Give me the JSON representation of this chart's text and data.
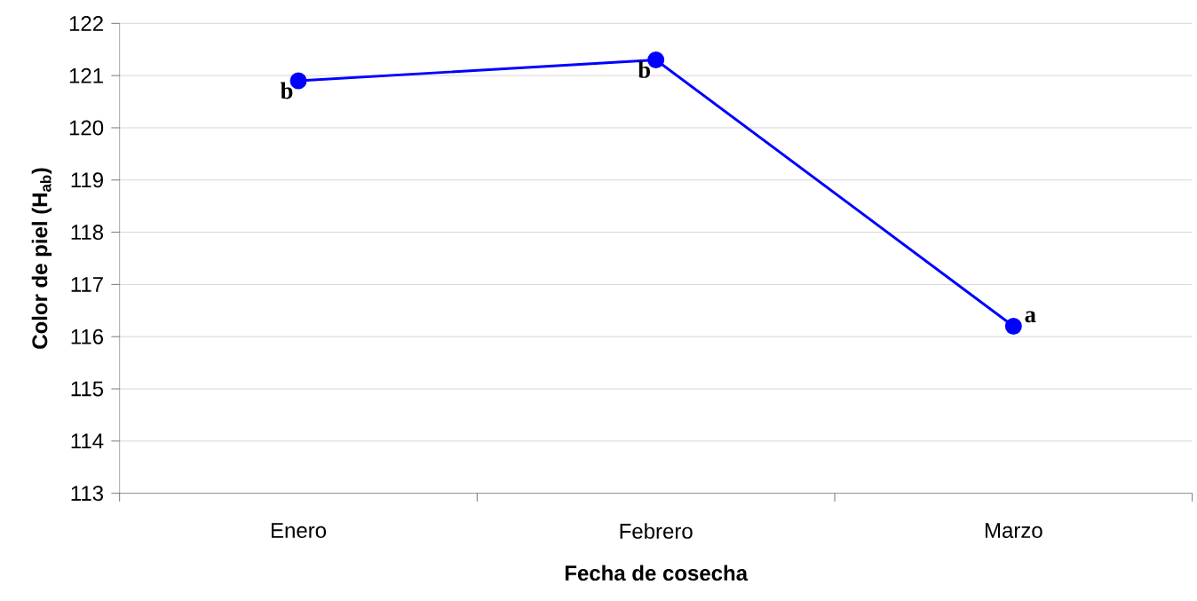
{
  "chart_data": {
    "type": "line",
    "xlabel": "Fecha de cosecha",
    "ylabel": "Color de piel (H$_{ab}$)",
    "categories": [
      "Enero",
      "Febrero",
      "Marzo"
    ],
    "series": [
      {
        "color": "#0000ff",
        "values": [
          120.9,
          121.3,
          116.2
        ]
      }
    ],
    "ylim": [
      113,
      122
    ],
    "yticks": [
      113,
      114,
      115,
      116,
      117,
      118,
      119,
      120,
      121,
      122
    ],
    "grid": "y",
    "marker": "circle",
    "line_style": "solid",
    "annotations": [
      {
        "text": "b",
        "x": "Enero",
        "y": 120.9
      },
      {
        "text": "b",
        "x": "Febrero",
        "y": 121.3
      },
      {
        "text": "a",
        "x": "Marzo",
        "y": 116.2
      }
    ]
  }
}
